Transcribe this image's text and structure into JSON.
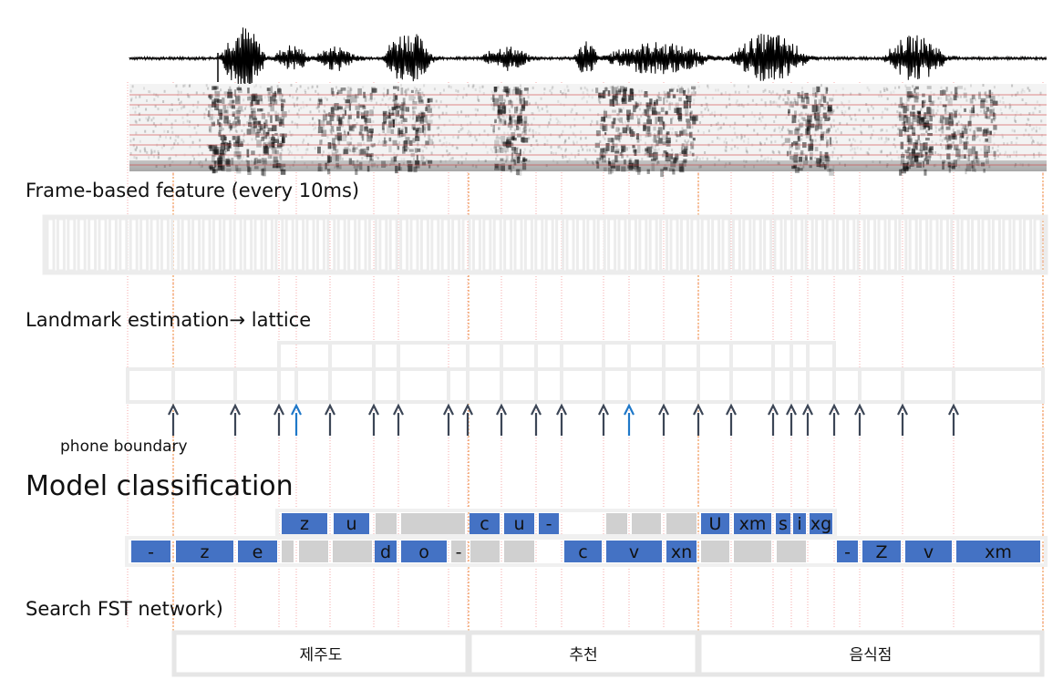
{
  "labels": {
    "frame": "Frame-based feature (every 10ms)",
    "landmark": "Landmark estimation→ lattice",
    "phone_boundary": "phone boundary",
    "model": "Model classification",
    "search": "Search FST network)"
  },
  "classification_top": [
    "z",
    "u",
    "",
    "",
    "c",
    "u",
    "-",
    "",
    "",
    "",
    "",
    "U",
    "xm",
    "s",
    "i",
    "xg"
  ],
  "classification_bottom": [
    "-",
    "z",
    "e",
    "",
    "",
    "",
    "d",
    "o",
    "-",
    "",
    "",
    "",
    "c",
    "v",
    "xn",
    "",
    "",
    "",
    "",
    "-",
    "Z",
    "v",
    "xm"
  ],
  "words": [
    "제주도",
    "추천",
    "음식점"
  ],
  "colors": {
    "phone_box": "#4472c4",
    "filler_box": "#d0d0d0",
    "frame_cell": "#ececec",
    "arrow_dark": "#3c4656",
    "arrow_highlight": "#1f78c8",
    "word_boundary_line": "#f0a060",
    "landmark_line": "#f4aaaa"
  }
}
